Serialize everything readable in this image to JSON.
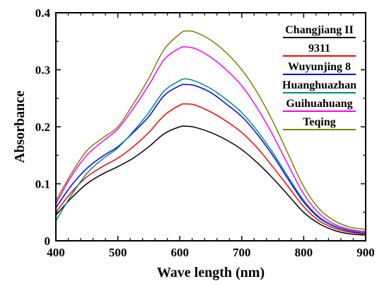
{
  "chart_data": {
    "type": "line",
    "title": "",
    "xlabel": "Wave length (nm)",
    "ylabel": "Absorbance",
    "xlim": [
      400,
      900
    ],
    "ylim": [
      0,
      0.4
    ],
    "x_ticks": [
      "400",
      "500",
      "600",
      "700",
      "800",
      "900"
    ],
    "y_ticks": [
      "0",
      "0.1",
      "0.2",
      "0.3",
      "0.4"
    ],
    "grid": false,
    "legend_position": "top-right",
    "x": [
      400,
      425,
      450,
      475,
      500,
      525,
      550,
      575,
      600,
      610,
      625,
      650,
      675,
      700,
      725,
      750,
      775,
      800,
      825,
      850,
      875,
      900
    ],
    "series": [
      {
        "name": "Changjiang II",
        "color": "#000000",
        "values": [
          0.045,
          0.075,
          0.1,
          0.117,
          0.13,
          0.145,
          0.165,
          0.188,
          0.2,
          0.201,
          0.199,
          0.19,
          0.177,
          0.16,
          0.137,
          0.11,
          0.08,
          0.05,
          0.03,
          0.018,
          0.012,
          0.01
        ]
      },
      {
        "name": "9311",
        "color": "#ff0000",
        "values": [
          0.05,
          0.085,
          0.112,
          0.13,
          0.145,
          0.165,
          0.19,
          0.22,
          0.238,
          0.24,
          0.238,
          0.226,
          0.21,
          0.19,
          0.163,
          0.13,
          0.095,
          0.06,
          0.035,
          0.022,
          0.015,
          0.012
        ]
      },
      {
        "name": "Wuyunjing 8",
        "color": "#0000ff",
        "values": [
          0.058,
          0.097,
          0.127,
          0.148,
          0.165,
          0.19,
          0.218,
          0.255,
          0.272,
          0.274,
          0.272,
          0.26,
          0.24,
          0.218,
          0.187,
          0.15,
          0.108,
          0.068,
          0.04,
          0.025,
          0.017,
          0.013
        ]
      },
      {
        "name": "Huanghuazhan",
        "color": "#008b8b",
        "values": [
          0.035,
          0.08,
          0.118,
          0.143,
          0.163,
          0.192,
          0.225,
          0.263,
          0.281,
          0.284,
          0.28,
          0.267,
          0.248,
          0.225,
          0.193,
          0.155,
          0.112,
          0.071,
          0.042,
          0.026,
          0.018,
          0.014
        ]
      },
      {
        "name": "Guihuahuang",
        "color": "#ff00ff",
        "values": [
          0.065,
          0.113,
          0.15,
          0.174,
          0.196,
          0.232,
          0.273,
          0.318,
          0.338,
          0.34,
          0.337,
          0.322,
          0.3,
          0.272,
          0.233,
          0.186,
          0.133,
          0.082,
          0.048,
          0.029,
          0.02,
          0.016
        ]
      },
      {
        "name": "Teqing",
        "color": "#808000",
        "values": [
          0.07,
          0.118,
          0.158,
          0.18,
          0.2,
          0.24,
          0.285,
          0.336,
          0.363,
          0.368,
          0.366,
          0.352,
          0.33,
          0.3,
          0.26,
          0.21,
          0.152,
          0.095,
          0.056,
          0.035,
          0.024,
          0.02
        ]
      }
    ]
  }
}
